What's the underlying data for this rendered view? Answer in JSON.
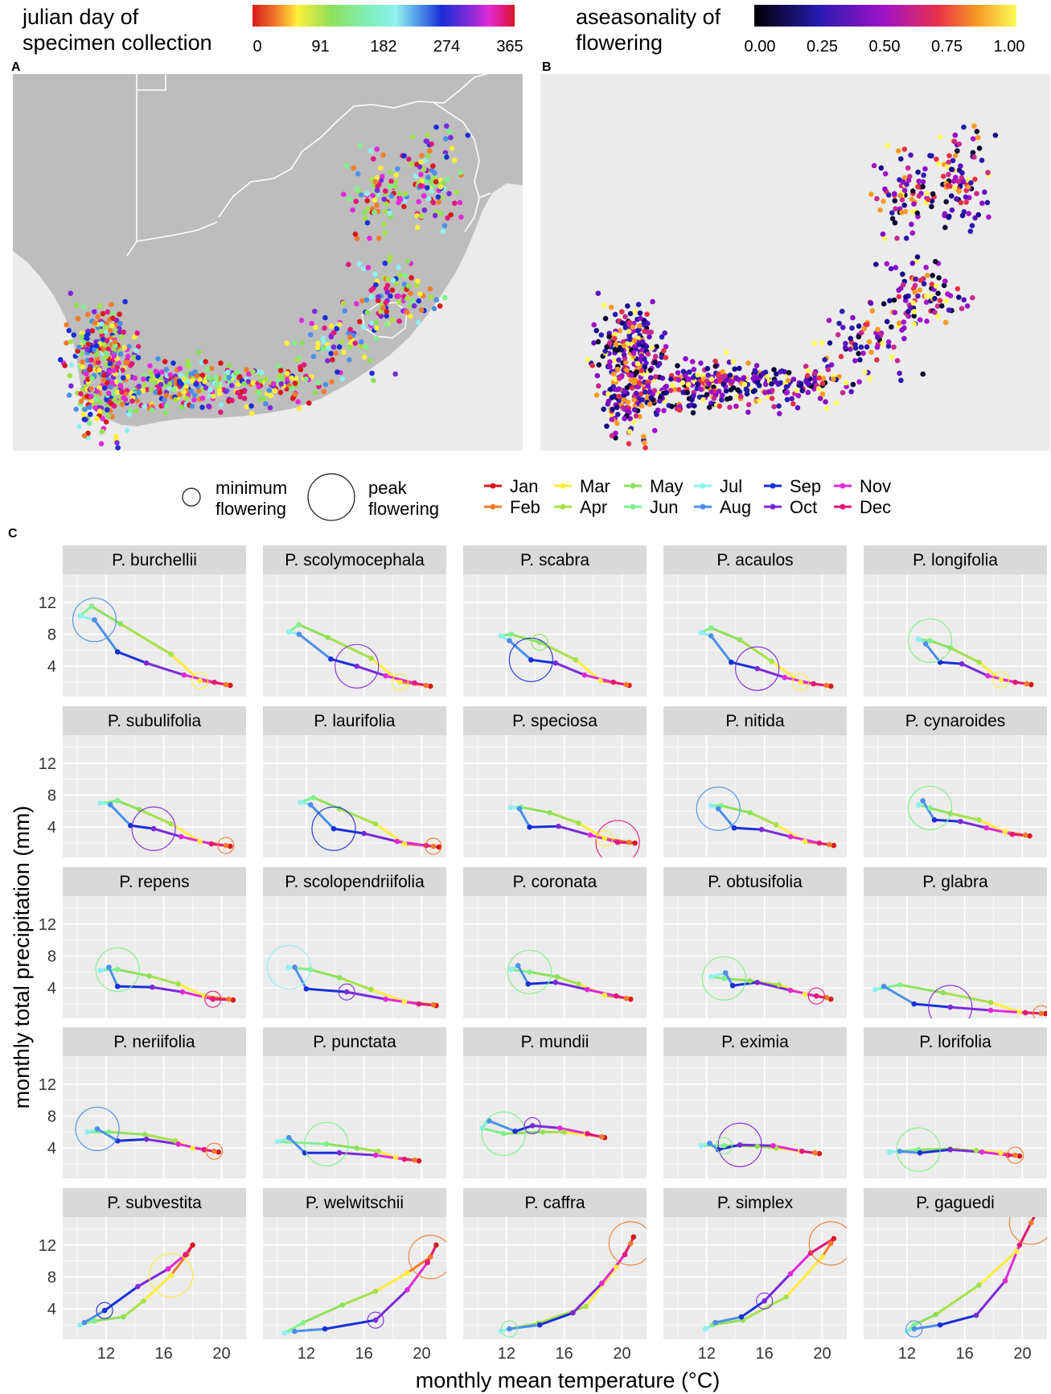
{
  "legend_top_left": {
    "title_line1": "julian day of",
    "title_line2": "specimen collection",
    "ticks": [
      "0",
      "91",
      "182",
      "274",
      "365"
    ]
  },
  "legend_top_right": {
    "title_line1": "aseasonality of",
    "title_line2": "flowering",
    "ticks": [
      "0.00",
      "0.25",
      "0.50",
      "0.75",
      "1.00"
    ]
  },
  "panel_labels": {
    "a": "A",
    "b": "B",
    "c": "C"
  },
  "size_legend": {
    "min_line1": "minimum",
    "min_line2": "flowering",
    "peak_line1": "peak",
    "peak_line2": "flowering"
  },
  "months": [
    {
      "label": "Jan",
      "color": "#d7191c"
    },
    {
      "label": "Feb",
      "color": "#f07c2a"
    },
    {
      "label": "Mar",
      "color": "#ffee3a"
    },
    {
      "label": "Apr",
      "color": "#a6e048"
    },
    {
      "label": "May",
      "color": "#8ee05a"
    },
    {
      "label": "Jun",
      "color": "#7ff08c"
    },
    {
      "label": "Jul",
      "color": "#8ef0ef"
    },
    {
      "label": "Aug",
      "color": "#4c8fe8"
    },
    {
      "label": "Sep",
      "color": "#1a2fd8"
    },
    {
      "label": "Oct",
      "color": "#7b2ad8"
    },
    {
      "label": "Nov",
      "color": "#e02ad8"
    },
    {
      "label": "Dec",
      "color": "#e01a78"
    }
  ],
  "colors": {
    "map_land": "#bdbdbd",
    "map_ocean": "#ebebeb",
    "panel_bg": "#ebebeb",
    "strip_bg": "#d9d9d9"
  },
  "chart_data": [
    {
      "type": "map",
      "panel": "A",
      "description_colorscale": "julian day of specimen collection, 0-365"
    },
    {
      "type": "map",
      "panel": "B",
      "description_colorscale": "aseasonality of flowering, 0.00-1.00"
    },
    {
      "type": "line",
      "panel": "C",
      "xlabel": "monthly mean temperature (°C)",
      "ylabel": "monthly total precipitation (mm)",
      "x_ticks": [
        12,
        16,
        20
      ],
      "y_ticks": [
        4,
        8,
        12
      ],
      "xlim": [
        9,
        21.7
      ],
      "ylim": [
        0.2,
        15.5
      ],
      "panels": [
        {
          "name": "P. burchellii",
          "temp": [
            20.6,
            20.3,
            18.5,
            16.5,
            13,
            11,
            10.2,
            11.2,
            12.8,
            14.8,
            17.4,
            19.5
          ],
          "precip": [
            1.6,
            1.7,
            2.2,
            5.5,
            9.3,
            11.5,
            10.3,
            9.8,
            5.8,
            4.4,
            2.9,
            2
          ],
          "peak": 7,
          "min": 2
        },
        {
          "name": "P. scolymocephala",
          "temp": [
            20.6,
            20.3,
            18.5,
            16.5,
            13.5,
            11.5,
            10.8,
            11.5,
            13.7,
            15.5,
            17.5,
            19.5
          ],
          "precip": [
            1.5,
            1.6,
            2,
            5,
            7.6,
            9.2,
            8.3,
            8,
            4.9,
            4,
            2.8,
            1.9
          ],
          "peak": 9,
          "min": 2
        },
        {
          "name": "P. scabra",
          "temp": [
            20.5,
            20.3,
            18.5,
            16.8,
            14.3,
            12.3,
            11.6,
            12.2,
            13.7,
            15.4,
            17.4,
            19.4
          ],
          "precip": [
            1.6,
            1.7,
            2.2,
            4.8,
            7,
            8,
            7.8,
            7.2,
            4.8,
            4.4,
            2.9,
            2
          ],
          "peak": 8,
          "min": 4
        },
        {
          "name": "P. acaulos",
          "temp": [
            20.6,
            20.3,
            18.5,
            16.5,
            14.3,
            12.3,
            11.6,
            12.3,
            13.7,
            15.5,
            17.4,
            19.4
          ],
          "precip": [
            1.5,
            1.6,
            2,
            4.6,
            7.3,
            8.8,
            8.2,
            7.8,
            4.5,
            3.7,
            2.6,
            1.8
          ],
          "peak": 9,
          "min": 2
        },
        {
          "name": "P. longifolia",
          "temp": [
            20.6,
            20.3,
            18.5,
            17,
            15,
            13.6,
            12.8,
            13.3,
            14.3,
            15.8,
            17.6,
            19.5
          ],
          "precip": [
            1.7,
            1.8,
            2.3,
            4.5,
            6.3,
            7.2,
            7.4,
            6.8,
            4.5,
            4.3,
            2.8,
            2
          ],
          "peak": 5,
          "min": 2
        },
        {
          "name": "P. subulifolia",
          "temp": [
            20.6,
            20.3,
            18.5,
            16.5,
            14.3,
            12.8,
            11.6,
            12.3,
            13.7,
            15.3,
            17.2,
            19.3
          ],
          "precip": [
            1.6,
            1.7,
            2.2,
            4.4,
            6.2,
            7.3,
            7,
            6.8,
            4.2,
            3.8,
            2.8,
            1.9
          ],
          "peak": 9,
          "min": 1
        },
        {
          "name": "P. laurifolia",
          "temp": [
            21.2,
            20.8,
            18.8,
            16.8,
            14.3,
            12.5,
            11.6,
            12.3,
            13.9,
            16,
            18.3,
            20.3
          ],
          "precip": [
            1.5,
            1.6,
            1.9,
            4.4,
            6.3,
            7.7,
            7.1,
            6.8,
            3.8,
            3.2,
            2.2,
            1.7
          ],
          "peak": 8,
          "min": 1
        },
        {
          "name": "P. speciosa",
          "temp": [
            20.9,
            20.5,
            18.8,
            17,
            15,
            13,
            12.3,
            12.9,
            13.6,
            15.6,
            17.8,
            19.7
          ],
          "precip": [
            2,
            2.1,
            2.6,
            4.5,
            5.8,
            6.5,
            6.5,
            6.3,
            4,
            4.1,
            3,
            2.1
          ],
          "peak": 11,
          "min": 2
        },
        {
          "name": "P. nitida",
          "temp": [
            20.8,
            20.5,
            18.8,
            16.8,
            15,
            13,
            12.3,
            12.8,
            13.9,
            15.8,
            17.8,
            19.8
          ],
          "precip": [
            1.7,
            1.8,
            2.2,
            4.3,
            5.8,
            6.7,
            6.7,
            6.3,
            3.9,
            3.7,
            2.8,
            2
          ],
          "peak": 7,
          "min": 12
        },
        {
          "name": "P. cynaroides",
          "temp": [
            20.5,
            20.2,
            18.8,
            17,
            15,
            13.6,
            12.8,
            13.1,
            13.9,
            15.7,
            17.5,
            19.3
          ],
          "precip": [
            2.9,
            3,
            3.4,
            4.9,
            5.7,
            6.4,
            6.8,
            7.3,
            4.9,
            4.7,
            3.9,
            3.1
          ],
          "peak": 5,
          "min": 12
        },
        {
          "name": "P. repens",
          "temp": [
            20.8,
            20.5,
            18.8,
            17,
            15,
            12.8,
            11.6,
            12.2,
            12.8,
            15.2,
            17.3,
            19.4
          ],
          "precip": [
            2.5,
            2.6,
            3,
            4.5,
            5.5,
            6.3,
            6.2,
            6.6,
            4.2,
            4.1,
            3.5,
            2.6
          ],
          "peak": 5,
          "min": 11
        },
        {
          "name": "P. scolopendriifolia",
          "temp": [
            21,
            20.8,
            18.8,
            16.5,
            14.3,
            12.3,
            10.8,
            11.2,
            12,
            14.8,
            17.5,
            19.8
          ],
          "precip": [
            1.8,
            1.9,
            2.3,
            3.8,
            5.3,
            6.3,
            6.6,
            6.6,
            3.9,
            3.5,
            2.6,
            2
          ],
          "peak": 6,
          "min": 9
        },
        {
          "name": "P. coronata",
          "temp": [
            20.6,
            20.3,
            18.8,
            17,
            15.5,
            13.6,
            12.3,
            12.8,
            13.5,
            15.4,
            17.6,
            19.6
          ],
          "precip": [
            2.6,
            2.7,
            3.1,
            4.5,
            5.4,
            6,
            6.3,
            6.8,
            4.5,
            4.7,
            3.8,
            3
          ],
          "peak": 5,
          "min": 12
        },
        {
          "name": "P. obtusifolia",
          "temp": [
            20.6,
            20.3,
            18.8,
            17,
            15,
            13.2,
            12.3,
            13.3,
            13.8,
            15.5,
            17.8,
            19.6
          ],
          "precip": [
            2.6,
            2.8,
            3.2,
            4.4,
            4.9,
            5.2,
            5.4,
            5.9,
            4.3,
            4.7,
            3.7,
            3
          ],
          "peak": 5,
          "min": 11
        },
        {
          "name": "P. glabra",
          "temp": [
            21.6,
            21.3,
            19.8,
            17.8,
            14.5,
            11.5,
            9.8,
            10.4,
            12.5,
            15,
            17.8,
            20.2
          ],
          "precip": [
            0.8,
            0.8,
            1,
            2.2,
            3.4,
            4.4,
            3.8,
            4.2,
            2,
            1.6,
            1.2,
            0.9
          ],
          "peak": 9,
          "min": 1
        },
        {
          "name": "P. neriifolia",
          "temp": [
            19.8,
            19.5,
            18,
            16.8,
            14.7,
            12.2,
            10.7,
            11.4,
            12.8,
            14.8,
            17,
            18.8
          ],
          "precip": [
            3.5,
            3.6,
            4,
            4.9,
            5.7,
            6,
            6,
            6.4,
            4.9,
            5.1,
            4.5,
            3.8
          ],
          "peak": 7,
          "min": 1
        },
        {
          "name": "P. punctata",
          "temp": [
            19.8,
            19.5,
            18.2,
            17,
            15.5,
            13.4,
            10,
            10.8,
            11.9,
            14.3,
            16.8,
            18.8
          ],
          "precip": [
            2.4,
            2.5,
            2.8,
            3.6,
            4,
            4.5,
            4.8,
            5.3,
            3.4,
            3.4,
            3.1,
            2.6
          ],
          "peak": 5,
          "min": 12
        },
        {
          "name": "P. mundii",
          "temp": [
            18.8,
            18.6,
            17.5,
            16,
            14.5,
            11.8,
            10.3,
            10.8,
            12.6,
            13.8,
            15.7,
            17.6
          ],
          "precip": [
            5.3,
            5.4,
            5.7,
            6,
            6,
            5.8,
            6.5,
            7.4,
            6.1,
            6.8,
            6.5,
            5.8
          ],
          "peak": 5,
          "min": 9
        },
        {
          "name": "P. eximia",
          "temp": [
            19.8,
            19.5,
            18.5,
            16.8,
            15.5,
            13.2,
            11.6,
            12.2,
            12.8,
            14.3,
            16.6,
            18.6
          ],
          "precip": [
            3.3,
            3.4,
            3.6,
            4,
            4.2,
            4.3,
            4.3,
            4.6,
            3.8,
            4.4,
            4.3,
            3.6
          ],
          "peak": 9,
          "min": 5
        },
        {
          "name": "P. lorifolia",
          "temp": [
            19.8,
            19.5,
            18.5,
            16.8,
            15,
            12.8,
            10.8,
            11.5,
            12.9,
            15,
            17.2,
            19
          ],
          "precip": [
            3,
            3.1,
            3.4,
            3.7,
            3.9,
            3.8,
            3.5,
            3.6,
            3.4,
            3.8,
            3.5,
            3.1
          ],
          "peak": 5,
          "min": 1
        },
        {
          "name": "P. subvestita",
          "temp": [
            18,
            17.6,
            16.5,
            14.6,
            13.2,
            11.2,
            10.2,
            10.5,
            11.9,
            14.2,
            16.3,
            17.5
          ],
          "precip": [
            12,
            10.8,
            8.2,
            5,
            3,
            2.5,
            2,
            2.3,
            3.8,
            6.8,
            9,
            10.8
          ],
          "peak": 2,
          "min": 8
        },
        {
          "name": "P. welwitschii",
          "temp": [
            21,
            20.6,
            19,
            16.8,
            14.5,
            11.8,
            10.5,
            11.2,
            13.3,
            16.8,
            19,
            20.4
          ],
          "precip": [
            12,
            10.5,
            8.5,
            6.2,
            4.5,
            2.3,
            1,
            1.2,
            1.5,
            2.6,
            6.4,
            9.8
          ],
          "peak": 1,
          "min": 9
        },
        {
          "name": "P. caffra",
          "temp": [
            20.8,
            20.6,
            19.6,
            17.5,
            14.2,
            12.2,
            11.6,
            12.2,
            14.3,
            16.6,
            18.6,
            20.2
          ],
          "precip": [
            13,
            12.2,
            9.2,
            4.3,
            2.2,
            1.5,
            1.2,
            1.5,
            2,
            3.5,
            7.2,
            10.8
          ],
          "peak": 1,
          "min": 5
        },
        {
          "name": "P. simplex",
          "temp": [
            20.8,
            20.6,
            20,
            17.5,
            14.5,
            12.4,
            11.9,
            12.6,
            14.4,
            16,
            17.8,
            19.2
          ],
          "precip": [
            12.8,
            12.2,
            10.5,
            5.5,
            2.6,
            2,
            1.5,
            2.3,
            3,
            5,
            8.4,
            11
          ],
          "peak": 1,
          "min": 9
        },
        {
          "name": "P. gaguedi",
          "temp": [
            21,
            20.6,
            19.6,
            17,
            14,
            12.5,
            12,
            12.5,
            14.3,
            16.8,
            18.8,
            19.8
          ],
          "precip": [
            16.2,
            14.8,
            11.2,
            7,
            3.3,
            2,
            1.2,
            1.5,
            2,
            3.2,
            7.5,
            12
          ],
          "peak": 1,
          "min": 7
        }
      ]
    }
  ]
}
